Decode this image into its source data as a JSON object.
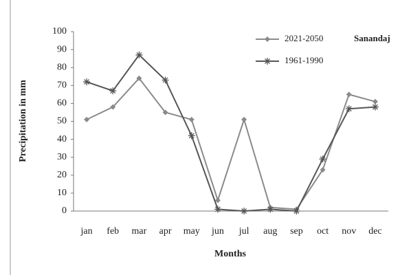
{
  "chart_data": {
    "type": "line",
    "annotation": "Sanandaj",
    "xlabel": "Months",
    "ylabel": "Precipitation in mm",
    "categories": [
      "jan",
      "feb",
      "mar",
      "apr",
      "may",
      "jun",
      "jul",
      "aug",
      "sep",
      "oct",
      "nov",
      "dec"
    ],
    "series": [
      {
        "name": "2021-2050",
        "color": "#8a8a8a",
        "marker": "diamond",
        "values": [
          51,
          58,
          74,
          55,
          51,
          6,
          51,
          2,
          1,
          23,
          65,
          61
        ]
      },
      {
        "name": "1961-1990",
        "color": "#555555",
        "marker": "star",
        "values": [
          72,
          67,
          87,
          73,
          42,
          1,
          0,
          1,
          0,
          29,
          57,
          58
        ]
      }
    ],
    "ylim": [
      0,
      100
    ],
    "yticks": [
      0,
      10,
      20,
      30,
      40,
      50,
      60,
      70,
      80,
      90,
      100
    ],
    "legend": "top-right"
  }
}
